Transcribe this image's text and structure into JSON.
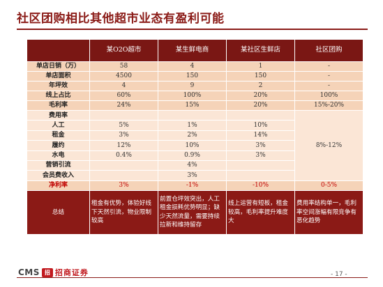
{
  "slide": {
    "title": "社区团购相比其他超市业态有盈利可能",
    "page_number": "- 17 -"
  },
  "logo": {
    "brand_en": "CMS",
    "badge": "招",
    "brand_cn": "招商证券"
  },
  "table": {
    "headers": [
      "",
      "某O2O超市",
      "某生鲜电商",
      "某社区生鲜店",
      "社区团购"
    ],
    "rows": [
      {
        "label": "单店日销（万）",
        "cells": [
          "58",
          "4",
          "1",
          "-"
        ]
      },
      {
        "label": "单店面积",
        "cells": [
          "4500",
          "150",
          "150",
          "-"
        ]
      },
      {
        "label": "年坪效",
        "cells": [
          "4",
          "9",
          "2",
          "-"
        ]
      },
      {
        "label": "线上占比",
        "cells": [
          "60%",
          "100%",
          "20%",
          "100%"
        ]
      },
      {
        "label": "毛利率",
        "cells": [
          "24%",
          "15%",
          "20%",
          "15%-20%"
        ]
      }
    ],
    "cost_header": "费用率",
    "cost_rows": [
      {
        "label": "人工",
        "cells": [
          "5%",
          "1%",
          "10%"
        ]
      },
      {
        "label": "租金",
        "cells": [
          "3%",
          "2%",
          "14%"
        ]
      },
      {
        "label": "履约",
        "cells": [
          "12%",
          "10%",
          "3%"
        ]
      },
      {
        "label": "水电",
        "cells": [
          "0.4%",
          "0.9%",
          "3%"
        ]
      },
      {
        "label": "营销引流",
        "cells": [
          "",
          "4%",
          ""
        ]
      },
      {
        "label": "会员费收入",
        "cells": [
          "",
          "3%",
          ""
        ]
      }
    ],
    "cost_tuangou": "8%-12%",
    "net_row": {
      "label": "净利率",
      "cells": [
        "3%",
        "-1%",
        "-10%",
        "0-5%"
      ]
    },
    "summary_row": {
      "label": "总结",
      "cells": [
        "租金有优势，体验好线下天然引流，物业限制较高",
        "前置仓坪效突出，人工租金损耗优势明显；缺少天然流量，需要持续拉新和维持留存",
        "线上运营有短板，租金较高，毛利率提升难度大",
        "费用率结构单一，毛利率空间涨幅有限竞争有恶化趋势"
      ]
    }
  }
}
